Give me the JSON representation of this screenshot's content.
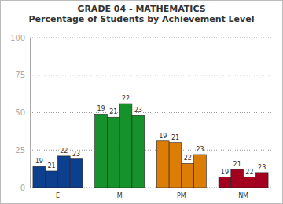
{
  "chart_data": {
    "type": "bar",
    "title": "GRADE 04 - MATHEMATICS",
    "subtitle": "Percentage of Students by Achievement Level",
    "categories": [
      "E",
      "M",
      "PM",
      "NM"
    ],
    "colors": [
      "#0d3f8f",
      "#16922c",
      "#dc7d06",
      "#a3001f"
    ],
    "series": [
      {
        "name": "19",
        "values": [
          14,
          49,
          31,
          7
        ]
      },
      {
        "name": "21",
        "values": [
          11,
          47,
          30,
          12
        ]
      },
      {
        "name": "22",
        "values": [
          21,
          56,
          16,
          7
        ]
      },
      {
        "name": "23",
        "values": [
          19,
          48,
          22,
          10
        ]
      }
    ],
    "ylim": [
      0,
      100
    ],
    "yticks": [
      0,
      25,
      50,
      75,
      100
    ],
    "grid": true
  }
}
